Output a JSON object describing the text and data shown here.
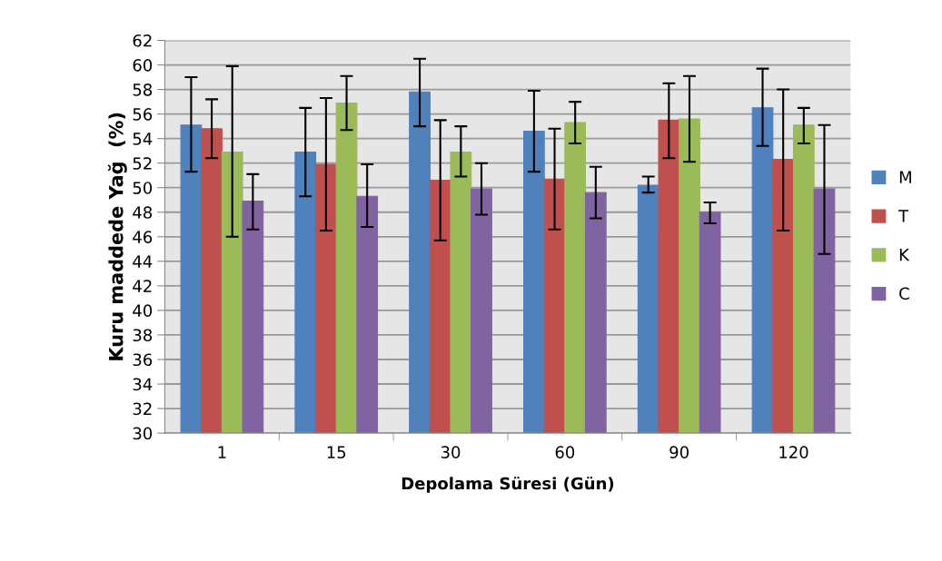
{
  "chart_data": {
    "type": "bar",
    "xlabel": "Depolama Süresi (Gün)",
    "ylabel": "Kuru maddede Yağ  (%)",
    "categories": [
      "1",
      "15",
      "30",
      "60",
      "90",
      "120"
    ],
    "series": [
      {
        "name": "M",
        "color": "#4f81bd",
        "values": [
          55.1,
          52.9,
          57.8,
          54.6,
          50.2,
          56.5
        ],
        "errors": [
          [
            51.3,
            59.0
          ],
          [
            49.3,
            56.5
          ],
          [
            55.0,
            60.5
          ],
          [
            51.3,
            57.9
          ],
          [
            49.6,
            50.9
          ],
          [
            53.4,
            59.7
          ]
        ]
      },
      {
        "name": "T",
        "color": "#c0504d",
        "values": [
          54.8,
          51.9,
          50.6,
          50.7,
          55.5,
          52.3
        ],
        "errors": [
          [
            52.4,
            57.2
          ],
          [
            46.5,
            57.3
          ],
          [
            45.7,
            55.5
          ],
          [
            46.6,
            54.8
          ],
          [
            52.4,
            58.5
          ],
          [
            46.5,
            58.0
          ]
        ]
      },
      {
        "name": "K",
        "color": "#9bbb59",
        "values": [
          52.9,
          56.9,
          52.9,
          55.3,
          55.6,
          55.1
        ],
        "errors": [
          [
            46.0,
            59.9
          ],
          [
            54.7,
            59.1
          ],
          [
            50.9,
            55.0
          ],
          [
            53.6,
            57.0
          ],
          [
            52.1,
            59.1
          ],
          [
            53.6,
            56.5
          ]
        ]
      },
      {
        "name": "C",
        "color": "#8064a2",
        "values": [
          48.9,
          49.3,
          49.9,
          49.6,
          48.0,
          49.9
        ],
        "errors": [
          [
            46.6,
            51.1
          ],
          [
            46.8,
            51.9
          ],
          [
            47.8,
            52.0
          ],
          [
            47.5,
            51.7
          ],
          [
            47.1,
            48.8
          ],
          [
            44.6,
            55.1
          ]
        ]
      }
    ],
    "ylim": [
      30,
      62
    ],
    "yticks": [
      30,
      32,
      34,
      36,
      38,
      40,
      42,
      44,
      46,
      48,
      50,
      52,
      54,
      56,
      58,
      60,
      62
    ],
    "grid": "y",
    "legend": "right"
  }
}
